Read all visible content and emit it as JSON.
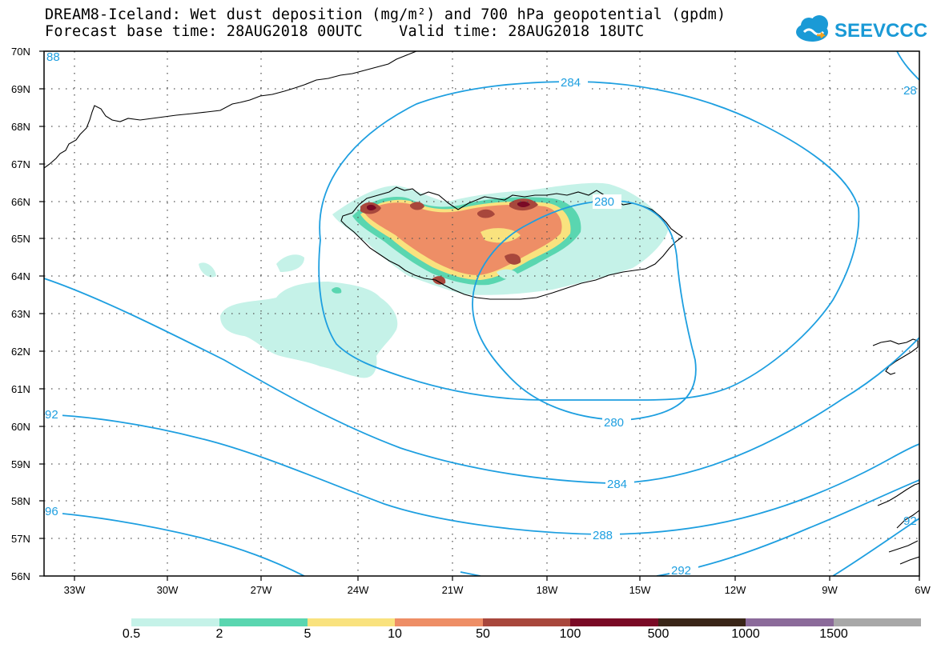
{
  "header": {
    "title_line_1": "DREAM8-Iceland: Wet dust deposition (mg/m²) and 700 hPa geopotential (gpdm)",
    "title_line_2": "Forecast base time: 28AUG2018 00UTC    Valid time: 28AUG2018 18UTC",
    "logo_text": "SEEVCCC"
  },
  "axes": {
    "lat_labels": [
      "70N",
      "69N",
      "68N",
      "67N",
      "66N",
      "65N",
      "64N",
      "63N",
      "62N",
      "61N",
      "60N",
      "59N",
      "58N",
      "57N",
      "56N"
    ],
    "lon_labels": [
      "33W",
      "30W",
      "27W",
      "24W",
      "21W",
      "18W",
      "15W",
      "12W",
      "9W",
      "6W"
    ]
  },
  "contours": {
    "color": "#1e9fe0",
    "labels": [
      "284",
      "280",
      "280",
      "284",
      "288",
      "292",
      "92",
      "96",
      "88",
      "28",
      "92"
    ]
  },
  "colorbar": {
    "labels": [
      "0.5",
      "2",
      "5",
      "10",
      "50",
      "100",
      "500",
      "1000",
      "1500"
    ],
    "colors": [
      "#c5f2e8",
      "#5ad6b0",
      "#f9e27e",
      "#ee8e66",
      "#a8473c",
      "#7a0a26",
      "#3a2618",
      "#8b6a9a",
      "#a8a8a8"
    ]
  }
}
